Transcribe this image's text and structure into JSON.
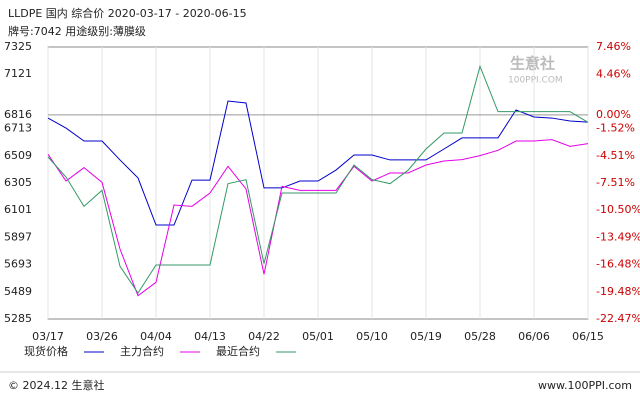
{
  "chart_data": {
    "type": "line",
    "title": "LLDPE 国内 综合价 2020-03-17 - 2020-06-15",
    "subtitle": "牌号:7042 用途级别:薄膜级",
    "categories": [
      "03/17",
      null,
      null,
      "03/26",
      null,
      null,
      "04/04",
      null,
      null,
      "04/13",
      null,
      null,
      "04/22",
      null,
      null,
      "05/01",
      null,
      null,
      "05/10",
      null,
      null,
      "05/19",
      null,
      null,
      "05/28",
      null,
      null,
      "06/06",
      null,
      null,
      "06/15"
    ],
    "series": [
      {
        "name": "现货价格",
        "color": "#0000cc",
        "values": [
          6792,
          6717,
          6620,
          6620,
          6478,
          6343,
          5990,
          5990,
          6327,
          6327,
          6920,
          6905,
          6268,
          6268,
          6320,
          6320,
          6402,
          6515,
          6515,
          6478,
          6478,
          6478,
          6560,
          6643,
          6643,
          6643,
          6853,
          6800,
          6792,
          6770,
          6762
        ]
      },
      {
        "name": "主力合约",
        "color": "#e600e6",
        "values": [
          6520,
          6320,
          6420,
          6310,
          5810,
          5460,
          5560,
          6140,
          6130,
          6230,
          6430,
          6260,
          5620,
          6280,
          6250,
          6250,
          6250,
          6430,
          6320,
          6380,
          6380,
          6440,
          6470,
          6480,
          6510,
          6550,
          6620,
          6620,
          6630,
          6580,
          6600
        ]
      },
      {
        "name": "最近合约",
        "color": "#339966",
        "values": [
          6500,
          6350,
          6130,
          6250,
          5680,
          5480,
          5690,
          5690,
          5690,
          5690,
          6300,
          6330,
          5700,
          6230,
          6230,
          6230,
          6230,
          6440,
          6330,
          6300,
          6400,
          6560,
          6680,
          6680,
          7180,
          6840,
          6840,
          6840,
          6840,
          6840,
          6760
        ]
      }
    ],
    "ylim": [
      5285,
      7325
    ],
    "yticks": [
      7325,
      7121,
      6816,
      6713,
      6509,
      6305,
      6101,
      5897,
      5693,
      5489,
      5285
    ],
    "y2lim": [
      -22.47,
      7.46
    ],
    "y2ticks": [
      {
        "value": 7.46,
        "label": "7.46%"
      },
      {
        "value": 4.46,
        "label": "4.46%"
      },
      {
        "value": 0,
        "label": "0.00%"
      },
      {
        "value": -1.52,
        "label": "-1.52%"
      },
      {
        "value": -4.51,
        "label": "-4.51%"
      },
      {
        "value": -7.51,
        "label": "-7.51%"
      },
      {
        "value": -10.5,
        "label": "-10.50%"
      },
      {
        "value": -13.49,
        "label": "-13.49%"
      },
      {
        "value": -16.48,
        "label": "-16.48%"
      },
      {
        "value": -19.48,
        "label": "-19.48%"
      },
      {
        "value": -22.47,
        "label": "-22.47%"
      }
    ],
    "reference_line": 6816,
    "watermark": [
      "生意社",
      "100PPI.COM"
    ],
    "footer": {
      "left": "© 2024.12 生意社",
      "right": "www.100PPI.com"
    }
  }
}
